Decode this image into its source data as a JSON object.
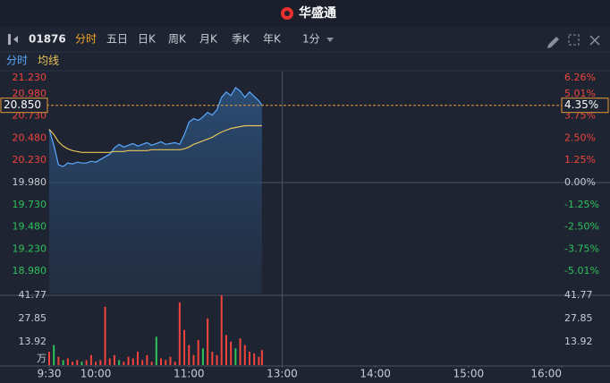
{
  "header": {
    "logo": "华盛通"
  },
  "toolbar": {
    "code": "01876",
    "tabs": [
      "分时",
      "五日",
      "日K",
      "周K",
      "月K",
      "季K",
      "年K"
    ],
    "interval": "1分"
  },
  "chart_data": {
    "type": "line",
    "x": [
      0,
      3,
      6,
      9,
      12,
      15,
      18,
      21,
      24,
      27,
      30,
      33,
      36,
      39,
      42,
      45,
      48,
      51,
      54,
      57,
      60,
      63,
      66,
      69,
      72,
      75,
      78,
      81,
      84,
      87,
      90,
      93,
      96,
      99,
      102,
      105,
      108,
      111,
      114,
      117,
      120,
      123,
      126,
      129,
      132,
      135,
      137
    ],
    "series": [
      {
        "name": "分时",
        "color": "#5aa9ff",
        "values": [
          20.58,
          20.4,
          20.18,
          20.16,
          20.2,
          20.19,
          20.21,
          20.2,
          20.2,
          20.22,
          20.21,
          20.24,
          20.27,
          20.3,
          20.37,
          20.41,
          20.38,
          20.4,
          20.42,
          20.39,
          20.41,
          20.43,
          20.4,
          20.42,
          20.44,
          20.41,
          20.42,
          20.43,
          20.41,
          20.52,
          20.66,
          20.7,
          20.68,
          20.72,
          20.77,
          20.74,
          20.8,
          20.94,
          21.0,
          20.96,
          21.05,
          21.01,
          20.94,
          21.0,
          20.95,
          20.9,
          20.85
        ]
      },
      {
        "name": "均线",
        "color": "#e8c35a",
        "values": [
          20.58,
          20.52,
          20.44,
          20.39,
          20.36,
          20.34,
          20.33,
          20.32,
          20.32,
          20.32,
          20.32,
          20.32,
          20.32,
          20.32,
          20.33,
          20.33,
          20.33,
          20.34,
          20.34,
          20.34,
          20.34,
          20.34,
          20.35,
          20.35,
          20.35,
          20.35,
          20.35,
          20.35,
          20.35,
          20.36,
          20.38,
          20.41,
          20.43,
          20.45,
          20.47,
          20.49,
          20.52,
          20.55,
          20.57,
          20.59,
          20.6,
          20.61,
          20.62,
          20.62,
          20.62,
          20.62,
          20.62
        ]
      }
    ],
    "xlim": [
      0,
      330
    ],
    "xticks": [
      {
        "value": 0,
        "label": "9:30"
      },
      {
        "value": 30,
        "label": "10:00"
      },
      {
        "value": 90,
        "label": "11:00"
      },
      {
        "value": 150,
        "label": "13:00"
      },
      {
        "value": 210,
        "label": "14:00"
      },
      {
        "value": 270,
        "label": "15:00"
      },
      {
        "value": 330,
        "label": "16:00"
      }
    ],
    "ylim": [
      18.73,
      21.23
    ],
    "yticks": [
      {
        "value": 21.23,
        "label": "21.230"
      },
      {
        "value": 20.98,
        "label": "20.980"
      },
      {
        "value": 20.73,
        "label": "20.730"
      },
      {
        "value": 20.48,
        "label": "20.480"
      },
      {
        "value": 20.23,
        "label": "20.230"
      },
      {
        "value": 19.98,
        "label": "19.980"
      },
      {
        "value": 19.73,
        "label": "19.730"
      },
      {
        "value": 19.48,
        "label": "19.480"
      },
      {
        "value": 19.23,
        "label": "19.230"
      },
      {
        "value": 18.98,
        "label": "18.980"
      }
    ],
    "y2lim": [
      -6.26,
      6.26
    ],
    "y2ticks": [
      {
        "value": 6.26,
        "label": "6.26%"
      },
      {
        "value": 5.01,
        "label": "5.01%"
      },
      {
        "value": 3.75,
        "label": "3.75%"
      },
      {
        "value": 2.5,
        "label": "2.50%"
      },
      {
        "value": 1.25,
        "label": "1.25%"
      },
      {
        "value": 0,
        "label": "0.00%"
      },
      {
        "value": -1.25,
        "label": "-1.25%"
      },
      {
        "value": -2.5,
        "label": "-2.50%"
      },
      {
        "value": -3.75,
        "label": "-3.75%"
      },
      {
        "value": -5.01,
        "label": "-5.01%"
      }
    ],
    "current_price": {
      "value": 20.85,
      "label": "20.850"
    },
    "current_change": {
      "value": 4.35,
      "label": "4.35%"
    },
    "volume": {
      "values": [
        8,
        12,
        5,
        3,
        4,
        2,
        3,
        2,
        3,
        6,
        2,
        3,
        34.9,
        4,
        6,
        3,
        2,
        5,
        4,
        8,
        3,
        6,
        2,
        17,
        4,
        3,
        5,
        2,
        37.5,
        21,
        12,
        6,
        15,
        10,
        28,
        8,
        6,
        41.77,
        18,
        14,
        10,
        16,
        12,
        8,
        7,
        5,
        9
      ],
      "colors": [
        "#f0443c",
        "#2fc25b",
        "#f0443c",
        "#2fc25b",
        "#f0443c",
        "#f0443c",
        "#f0443c",
        "#2fc25b",
        "#f0443c",
        "#f0443c",
        "#f0443c",
        "#f0443c",
        "#f0443c",
        "#f0443c",
        "#f0443c",
        "#2fc25b",
        "#f0443c",
        "#f0443c",
        "#f0443c",
        "#f0443c",
        "#f0443c",
        "#f0443c",
        "#f0443c",
        "#2fc25b",
        "#f0443c",
        "#f0443c",
        "#f0443c",
        "#f0443c",
        "#f0443c",
        "#f0443c",
        "#f0443c",
        "#f0443c",
        "#f0443c",
        "#2fc25b",
        "#f0443c",
        "#f0443c",
        "#f0443c",
        "#f0443c",
        "#f0443c",
        "#f0443c",
        "#2fc25b",
        "#f0443c",
        "#f0443c",
        "#f0443c",
        "#f0443c",
        "#f0443c",
        "#f0443c"
      ],
      "ylim": [
        0,
        41.77
      ],
      "yticks": [
        41.77,
        27.85,
        13.92,
        {
          "value": 0,
          "label": "万"
        }
      ]
    }
  }
}
